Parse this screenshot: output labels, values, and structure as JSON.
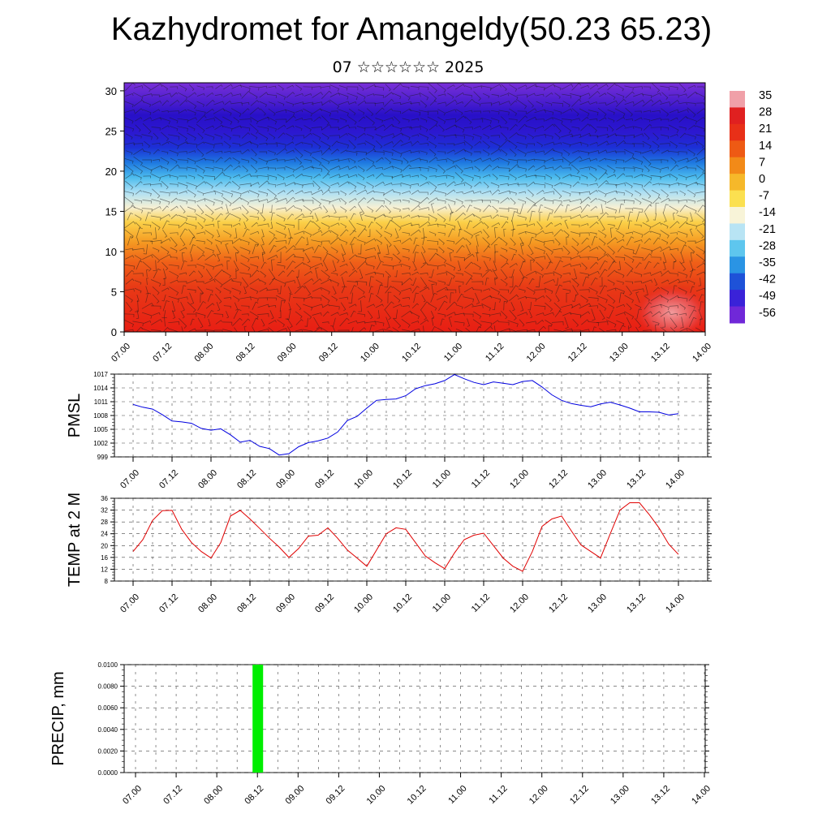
{
  "title": "Kazhydromet for Amangeldy(50.23 65.23)",
  "subtitle": "07 ☆☆☆☆☆☆ 2025",
  "chart_data": [
    {
      "type": "heatmap",
      "description_levels": "cross-section of temperature with wind barbs",
      "y_ticks": [
        "0",
        "5",
        "10",
        "15",
        "20",
        "25",
        "30"
      ],
      "ylim": [
        0,
        31
      ],
      "x_ticks": [
        "07.00",
        "07.12",
        "08.00",
        "08.12",
        "09.00",
        "09.12",
        "10.00",
        "10.12",
        "11.00",
        "11.12",
        "12.00",
        "12.12",
        "13.00",
        "13.12",
        "14.00"
      ],
      "colorbar_labels": [
        "35",
        "28",
        "21",
        "14",
        "7",
        "0",
        "-7",
        "-14",
        "-21",
        "-28",
        "-35",
        "-42",
        "-49",
        "-56"
      ],
      "colorbar_colors": [
        "#f0a0a8",
        "#e02020",
        "#e83018",
        "#ee5a14",
        "#f28a18",
        "#f6b82a",
        "#fbe050",
        "#f8f4d8",
        "#b8e4f4",
        "#5ec6ee",
        "#2a94e4",
        "#1e52d8",
        "#3a22d8",
        "#7028d8"
      ]
    },
    {
      "type": "line",
      "ylabel": "PMSL",
      "y_ticks": [
        "999",
        "1002",
        "1005",
        "1008",
        "1011",
        "1014",
        "1017"
      ],
      "ylim": [
        999,
        1017
      ],
      "x_ticks": [
        "07.00",
        "07.12",
        "08.00",
        "08.12",
        "09.00",
        "09.12",
        "10.00",
        "10.12",
        "11.00",
        "11.12",
        "12.00",
        "12.12",
        "13.00",
        "13.12",
        "14.00"
      ],
      "x_hours": [
        0,
        3,
        6,
        9,
        12,
        15,
        18,
        21,
        24,
        27,
        30,
        33,
        36,
        39,
        42,
        45,
        48,
        51,
        54,
        57,
        60,
        63,
        66,
        69,
        72,
        75,
        78,
        81,
        84,
        87,
        90,
        93,
        96,
        99,
        102,
        105,
        108,
        111,
        114,
        117,
        120,
        123,
        126,
        129,
        132,
        135,
        138,
        141,
        144,
        147,
        150,
        153,
        156,
        159,
        162,
        165,
        168
      ],
      "values": [
        1010.4,
        1009.8,
        1009.4,
        1008.2,
        1006.8,
        1006.6,
        1006.3,
        1005.2,
        1004.8,
        1005.1,
        1003.8,
        1002.2,
        1002.6,
        1001.3,
        1000.8,
        999.4,
        999.7,
        1001.2,
        1002.1,
        1002.5,
        1003.1,
        1004.4,
        1006.9,
        1007.8,
        1009.6,
        1011.3,
        1011.5,
        1011.6,
        1012.3,
        1013.8,
        1014.5,
        1014.9,
        1015.6,
        1016.9,
        1016.0,
        1015.2,
        1014.7,
        1015.3,
        1015.0,
        1014.7,
        1015.4,
        1015.6,
        1014.2,
        1012.5,
        1011.3,
        1010.6,
        1010.2,
        1009.9,
        1010.5,
        1010.9,
        1010.3,
        1009.6,
        1008.8,
        1008.8,
        1008.7,
        1008.1,
        1008.4
      ],
      "color": "#0000e0"
    },
    {
      "type": "line",
      "ylabel": "TEMP at 2 M",
      "y_ticks": [
        "8",
        "12",
        "16",
        "20",
        "24",
        "28",
        "32",
        "36"
      ],
      "ylim": [
        8,
        36
      ],
      "x_ticks": [
        "07.00",
        "07.12",
        "08.00",
        "08.12",
        "09.00",
        "09.12",
        "10.00",
        "10.12",
        "11.00",
        "11.12",
        "12.00",
        "12.12",
        "13.00",
        "13.12",
        "14.00"
      ],
      "x_hours": [
        0,
        3,
        6,
        9,
        12,
        15,
        18,
        21,
        24,
        27,
        30,
        33,
        36,
        39,
        42,
        45,
        48,
        51,
        54,
        57,
        60,
        63,
        66,
        69,
        72,
        75,
        78,
        81,
        84,
        87,
        90,
        93,
        96,
        99,
        102,
        105,
        108,
        111,
        114,
        117,
        120,
        123,
        126,
        129,
        132,
        135,
        138,
        141,
        144,
        147,
        150,
        153,
        156,
        159,
        162,
        165,
        168
      ],
      "values": [
        18.0,
        22.0,
        28.5,
        31.8,
        31.9,
        25.5,
        21.0,
        18.0,
        15.8,
        21.0,
        30.0,
        31.9,
        29.0,
        25.8,
        22.5,
        19.5,
        16.0,
        19.0,
        23.2,
        23.5,
        26.0,
        22.5,
        18.5,
        15.8,
        13.0,
        18.5,
        24.0,
        26.0,
        25.5,
        21.0,
        16.5,
        14.2,
        12.2,
        17.5,
        22.0,
        23.5,
        24.2,
        20.0,
        15.8,
        13.0,
        11.3,
        18.0,
        26.5,
        29.0,
        30.0,
        25.0,
        20.2,
        18.0,
        15.8,
        24.0,
        32.0,
        34.5,
        34.5,
        30.5,
        26.0,
        20.5,
        17.0
      ],
      "color": "#e00000"
    },
    {
      "type": "bar",
      "ylabel": "PRECIP, mm",
      "y_ticks": [
        "0.0000",
        "0.0020",
        "0.0040",
        "0.0060",
        "0.0080",
        "0.0100"
      ],
      "ylim": [
        0,
        0.01
      ],
      "x_ticks": [
        "07.00",
        "07.12",
        "08.00",
        "08.12",
        "09.00",
        "09.12",
        "10.00",
        "10.12",
        "11.00",
        "11.12",
        "12.00",
        "12.12",
        "13.00",
        "13.12",
        "14.00"
      ],
      "bars": [
        {
          "x_hours": 36,
          "value": 0.01
        }
      ],
      "color": "#00ee00"
    }
  ]
}
